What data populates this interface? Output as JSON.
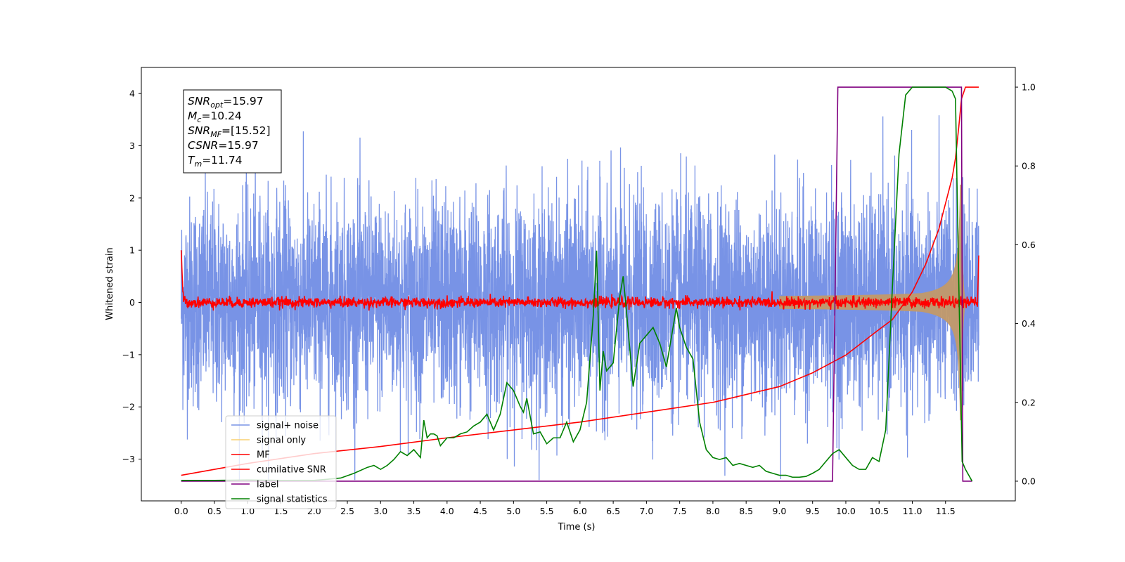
{
  "chart_data": {
    "type": "line",
    "title": "",
    "xlabel": "Time (s)",
    "ylabel": "Whitened strain",
    "xlim": [
      -0.6,
      12.55
    ],
    "ylim": [
      -3.8,
      4.5
    ],
    "y2lim": [
      -0.05,
      1.05
    ],
    "x_ticks": [
      0.0,
      0.5,
      1.0,
      1.5,
      2.0,
      2.5,
      3.0,
      3.5,
      4.0,
      4.5,
      5.0,
      5.5,
      6.0,
      6.5,
      7.0,
      7.5,
      8.0,
      8.5,
      9.0,
      9.5,
      10.0,
      10.5,
      11.0,
      11.5
    ],
    "x_tick_labels": [
      "0.0",
      "0.5",
      "1.0",
      "1.5",
      "2.0",
      "2.5",
      "3.0",
      "3.5",
      "4.0",
      "4.5",
      "5.0",
      "5.5",
      "6.0",
      "6.5",
      "7.0",
      "7.5",
      "8.0",
      "8.5",
      "9.0",
      "9.5",
      "10.0",
      "10.5",
      "11.0",
      "11.5"
    ],
    "y_ticks": [
      -3,
      -2,
      -1,
      0,
      1,
      2,
      3,
      4
    ],
    "y_tick_labels": [
      "−3",
      "−2",
      "−1",
      "0",
      "1",
      "2",
      "3",
      "4"
    ],
    "y2_ticks": [
      0.0,
      0.2,
      0.4,
      0.6,
      0.8,
      1.0
    ],
    "y2_tick_labels": [
      "0.0",
      "0.2",
      "0.4",
      "0.6",
      "0.8",
      "1.0"
    ],
    "grid": false,
    "legend_position": "lower-left",
    "annotation": [
      {
        "base": "SNR",
        "sub": "opt",
        "value": "=15.97"
      },
      {
        "base": "M",
        "sub": "c",
        "value": "=10.24"
      },
      {
        "base": "SNR",
        "sub": "MF",
        "value": "=[15.52]"
      },
      {
        "base": "CSNR",
        "sub": "",
        "value": "=15.97"
      },
      {
        "base": "T",
        "sub": "m",
        "value": "=11.74"
      }
    ],
    "series": [
      {
        "name": "signal+ noise",
        "axis": "left",
        "color": "#7893e6",
        "noise_sigma": 1.0,
        "t_start": 0.0,
        "t_end": 12.0
      },
      {
        "name": "signal only",
        "axis": "left",
        "color": "#f8d070",
        "chirp_merger_time": 11.74,
        "chirp_peak_amplitude": 2.5
      },
      {
        "name": "MF",
        "axis": "left",
        "color": "#ff0000",
        "noise_sigma": 0.05,
        "edge_values": [
          1.0,
          0.9
        ]
      },
      {
        "name": "cumilative SNR",
        "axis": "right",
        "color": "#ff0000",
        "x": [
          0.0,
          1.0,
          2.0,
          3.0,
          4.0,
          5.0,
          6.0,
          7.0,
          8.0,
          9.0,
          9.5,
          10.0,
          10.5,
          10.7,
          11.0,
          11.2,
          11.4,
          11.6,
          11.65,
          11.7,
          11.74,
          11.8,
          12.0
        ],
        "y": [
          0.015,
          0.045,
          0.07,
          0.088,
          0.11,
          0.13,
          0.15,
          0.175,
          0.2,
          0.24,
          0.275,
          0.32,
          0.385,
          0.41,
          0.48,
          0.55,
          0.64,
          0.77,
          0.82,
          0.9,
          0.97,
          1.0,
          1.0
        ]
      },
      {
        "name": "label",
        "axis": "right",
        "color": "#800080",
        "x": [
          0.0,
          9.8,
          9.88,
          11.74,
          11.76,
          11.9
        ],
        "y": [
          0.0,
          0.0,
          1.0,
          1.0,
          0.0,
          0.0
        ]
      },
      {
        "name": "signal statistics",
        "axis": "right",
        "color": "#008000",
        "x": [
          0.0,
          0.5,
          1.0,
          1.5,
          2.0,
          2.2,
          2.4,
          2.6,
          2.8,
          2.9,
          3.0,
          3.1,
          3.2,
          3.3,
          3.4,
          3.5,
          3.6,
          3.65,
          3.7,
          3.75,
          3.8,
          3.85,
          3.9,
          4.0,
          4.1,
          4.2,
          4.3,
          4.4,
          4.5,
          4.6,
          4.7,
          4.8,
          4.9,
          5.0,
          5.1,
          5.15,
          5.2,
          5.3,
          5.4,
          5.5,
          5.6,
          5.7,
          5.8,
          5.9,
          6.0,
          6.1,
          6.2,
          6.25,
          6.3,
          6.35,
          6.4,
          6.5,
          6.6,
          6.65,
          6.7,
          6.8,
          6.9,
          7.0,
          7.1,
          7.2,
          7.3,
          7.4,
          7.45,
          7.5,
          7.6,
          7.7,
          7.8,
          7.9,
          8.0,
          8.1,
          8.2,
          8.3,
          8.4,
          8.5,
          8.6,
          8.7,
          8.8,
          8.9,
          9.0,
          9.1,
          9.2,
          9.3,
          9.4,
          9.5,
          9.6,
          9.7,
          9.8,
          9.9,
          10.0,
          10.1,
          10.2,
          10.3,
          10.4,
          10.5,
          10.6,
          10.7,
          10.8,
          10.9,
          11.0,
          11.1,
          11.2,
          11.3,
          11.4,
          11.5,
          11.6,
          11.65,
          11.7,
          11.75,
          11.8,
          11.9
        ],
        "y": [
          0.002,
          0.002,
          0.003,
          0.002,
          0.002,
          0.005,
          0.008,
          0.02,
          0.035,
          0.04,
          0.03,
          0.04,
          0.055,
          0.075,
          0.065,
          0.08,
          0.06,
          0.155,
          0.11,
          0.12,
          0.12,
          0.115,
          0.09,
          0.11,
          0.11,
          0.12,
          0.125,
          0.14,
          0.15,
          0.17,
          0.13,
          0.17,
          0.25,
          0.23,
          0.19,
          0.175,
          0.21,
          0.12,
          0.125,
          0.095,
          0.11,
          0.11,
          0.15,
          0.1,
          0.13,
          0.2,
          0.42,
          0.585,
          0.23,
          0.33,
          0.28,
          0.3,
          0.47,
          0.52,
          0.43,
          0.24,
          0.35,
          0.37,
          0.39,
          0.35,
          0.29,
          0.39,
          0.44,
          0.39,
          0.34,
          0.31,
          0.15,
          0.08,
          0.06,
          0.055,
          0.06,
          0.04,
          0.045,
          0.04,
          0.035,
          0.04,
          0.025,
          0.02,
          0.015,
          0.015,
          0.01,
          0.01,
          0.012,
          0.02,
          0.03,
          0.05,
          0.07,
          0.08,
          0.06,
          0.04,
          0.03,
          0.03,
          0.06,
          0.05,
          0.13,
          0.49,
          0.83,
          0.98,
          1.0,
          1.0,
          1.0,
          1.0,
          1.0,
          1.0,
          0.99,
          0.97,
          0.5,
          0.05,
          0.03,
          0.0
        ]
      }
    ]
  }
}
